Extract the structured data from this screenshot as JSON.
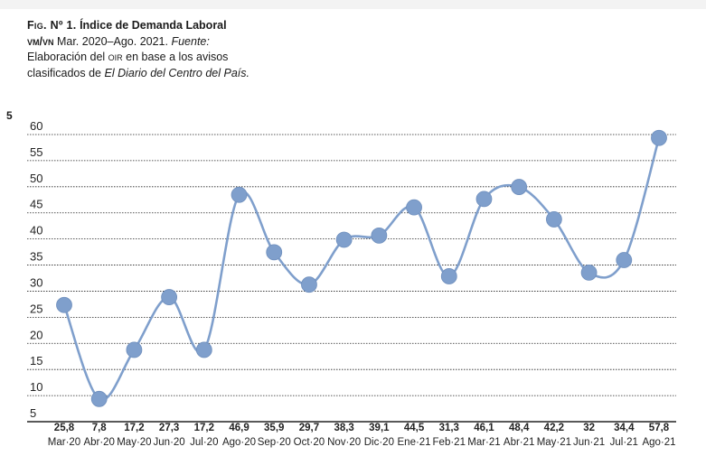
{
  "caption": {
    "fig": "Fig. Nº 1.",
    "title": "Índice de Demanda Laboral",
    "acronym": "vm/vn",
    "period": "Mar. 2020–Ago. 2021.",
    "source_label": "Fuente:",
    "source_text_1": "Elaboración del",
    "source_org": "oir",
    "source_text_2": "en base a los avisos clasificados de",
    "newspaper": "El Diario del Centro del País."
  },
  "page_number": "5",
  "chart_data": {
    "type": "line",
    "title": "Índice de Demanda Laboral vm/vn",
    "xlabel": "",
    "ylabel": "",
    "ylim": [
      5,
      60
    ],
    "yticks": [
      "5",
      "10",
      "15",
      "20",
      "25",
      "30",
      "35",
      "40",
      "45",
      "50",
      "55",
      "60"
    ],
    "grid": true,
    "smooth": true,
    "categories": [
      "Mar·20",
      "Abr·20",
      "May·20",
      "Jun·20",
      "Jul·20",
      "Ago·20",
      "Sep·20",
      "Oct·20",
      "Nov·20",
      "Dic·20",
      "Ene·21",
      "Feb·21",
      "Mar·21",
      "Abr·21",
      "May·21",
      "Jun·21",
      "Jul·21",
      "Ago·21"
    ],
    "value_labels": [
      "25,8",
      "7,8",
      "17,2",
      "27,3",
      "17,2",
      "46,9",
      "35,9",
      "29,7",
      "38,3",
      "39,1",
      "44,5",
      "31,3",
      "46,1",
      "48,4",
      "42,2",
      "32",
      "34,4",
      "57,8"
    ],
    "series": [
      {
        "name": "Índice de Demanda Laboral",
        "values": [
          25.8,
          7.8,
          17.2,
          27.3,
          17.2,
          46.9,
          35.9,
          29.7,
          38.3,
          39.1,
          44.5,
          31.3,
          46.1,
          48.4,
          42.2,
          32,
          34.4,
          57.8
        ]
      }
    ],
    "colors": {
      "line": "#7f9fcc",
      "grid": "#222222"
    }
  }
}
